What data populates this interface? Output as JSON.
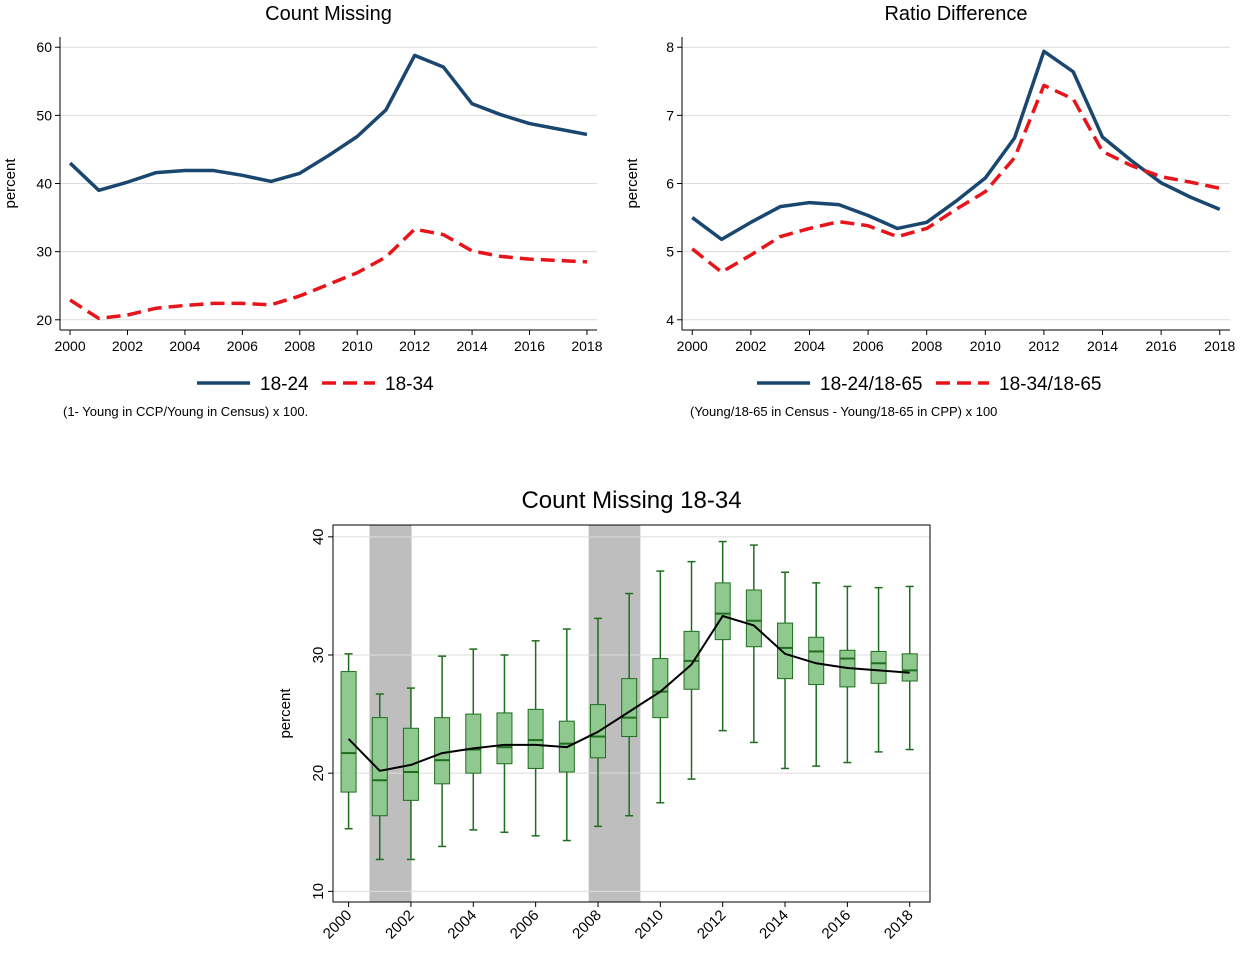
{
  "chart_data": [
    {
      "type": "line",
      "title": "Count Missing",
      "ylabel": "percent",
      "note": "(1- Young in CCP/Young in Census) x 100.",
      "x": [
        2000,
        2001,
        2002,
        2003,
        2004,
        2005,
        2006,
        2007,
        2008,
        2009,
        2010,
        2011,
        2012,
        2013,
        2014,
        2015,
        2016,
        2017,
        2018
      ],
      "series": [
        {
          "name": "18-24",
          "color": "#1a476f",
          "style": "solid",
          "values": [
            43.0,
            39.0,
            40.2,
            41.6,
            41.9,
            41.9,
            41.2,
            40.3,
            41.5,
            44.1,
            46.9,
            50.8,
            58.8,
            57.1,
            51.7,
            50.1,
            48.8,
            48.0,
            47.2
          ]
        },
        {
          "name": "18-34",
          "color": "#e8141b",
          "style": "dashed",
          "values": [
            22.9,
            20.2,
            20.7,
            21.7,
            22.1,
            22.4,
            22.4,
            22.2,
            23.5,
            25.2,
            26.9,
            29.2,
            33.3,
            32.5,
            30.1,
            29.3,
            28.9,
            28.7,
            28.5
          ]
        }
      ],
      "xlim": [
        1999.65,
        2018.35
      ],
      "xticks": [
        2000,
        2002,
        2004,
        2006,
        2008,
        2010,
        2012,
        2014,
        2016,
        2018
      ],
      "ylim": [
        18.5,
        61.5
      ],
      "yticks": [
        20,
        30,
        40,
        50,
        60
      ],
      "grid": true
    },
    {
      "type": "line",
      "title": "Ratio Difference",
      "ylabel": "percent",
      "note": "(Young/18-65 in Census - Young/18-65 in CPP) x 100",
      "x": [
        2000,
        2001,
        2002,
        2003,
        2004,
        2005,
        2006,
        2007,
        2008,
        2009,
        2010,
        2011,
        2012,
        2013,
        2014,
        2015,
        2016,
        2017,
        2018
      ],
      "series": [
        {
          "name": "18-24/18-65",
          "color": "#1a476f",
          "style": "solid",
          "values": [
            5.5,
            5.18,
            5.43,
            5.66,
            5.72,
            5.69,
            5.53,
            5.34,
            5.43,
            5.74,
            6.08,
            6.67,
            7.94,
            7.64,
            6.68,
            6.33,
            6.01,
            5.8,
            5.62
          ]
        },
        {
          "name": "18-34/18-65",
          "color": "#e8141b",
          "style": "dashed",
          "values": [
            5.04,
            4.7,
            4.95,
            5.22,
            5.34,
            5.44,
            5.38,
            5.22,
            5.34,
            5.62,
            5.88,
            6.38,
            7.44,
            7.24,
            6.47,
            6.26,
            6.1,
            6.02,
            5.93
          ]
        }
      ],
      "xlim": [
        1999.65,
        2018.35
      ],
      "xticks": [
        2000,
        2002,
        2004,
        2006,
        2008,
        2010,
        2012,
        2014,
        2016,
        2018
      ],
      "ylim": [
        3.85,
        8.15
      ],
      "yticks": [
        4,
        5,
        6,
        7,
        8
      ],
      "grid": true
    },
    {
      "type": "box",
      "title": "Count Missing 18-34",
      "ylabel": "percent",
      "x": [
        2000,
        2001,
        2002,
        2003,
        2004,
        2005,
        2006,
        2007,
        2008,
        2009,
        2010,
        2011,
        2012,
        2013,
        2014,
        2015,
        2016,
        2017,
        2018
      ],
      "boxes": {
        "low": [
          15.3,
          12.7,
          12.7,
          13.8,
          15.2,
          15.0,
          14.7,
          14.3,
          15.5,
          16.4,
          17.5,
          19.5,
          23.6,
          22.6,
          20.4,
          20.6,
          20.9,
          21.8,
          22.0
        ],
        "q1": [
          18.4,
          16.4,
          17.7,
          19.1,
          20.0,
          20.8,
          20.4,
          20.1,
          21.3,
          23.1,
          24.7,
          27.1,
          31.3,
          30.7,
          28.0,
          27.5,
          27.3,
          27.6,
          27.8
        ],
        "median": [
          21.7,
          19.4,
          20.1,
          21.1,
          22.0,
          22.2,
          22.8,
          22.5,
          23.1,
          24.7,
          26.9,
          29.5,
          33.5,
          32.9,
          30.6,
          30.3,
          29.7,
          29.3,
          28.7
        ],
        "q3": [
          28.6,
          24.7,
          23.8,
          24.7,
          25.0,
          25.1,
          25.4,
          24.4,
          25.8,
          28.0,
          29.7,
          32.0,
          36.1,
          35.5,
          32.7,
          31.5,
          30.4,
          30.3,
          30.1
        ],
        "high": [
          30.1,
          26.7,
          27.2,
          29.9,
          30.5,
          30.0,
          31.2,
          32.2,
          33.1,
          35.2,
          37.1,
          37.9,
          39.6,
          39.3,
          37.0,
          36.1,
          35.8,
          35.7,
          35.8
        ]
      },
      "box_color": "#90c990",
      "box_edge": "#1e6e1e",
      "series": [
        {
          "color": "#000000",
          "style": "solid",
          "values": [
            22.9,
            20.2,
            20.7,
            21.7,
            22.1,
            22.4,
            22.4,
            22.2,
            23.5,
            25.2,
            26.9,
            29.2,
            33.3,
            32.5,
            30.1,
            29.3,
            28.9,
            28.7,
            28.5
          ]
        }
      ],
      "shaded": [
        [
          2000.67,
          2002.02
        ],
        [
          2007.7,
          2009.36
        ]
      ],
      "shade_color": "#bebebe",
      "xlim": [
        1999.5,
        2018.65
      ],
      "xticks": [
        2000,
        2002,
        2004,
        2006,
        2008,
        2010,
        2012,
        2014,
        2016,
        2018
      ],
      "ylim": [
        9.1,
        41
      ],
      "yticks": [
        10,
        20,
        30,
        40
      ],
      "grid": true
    }
  ]
}
